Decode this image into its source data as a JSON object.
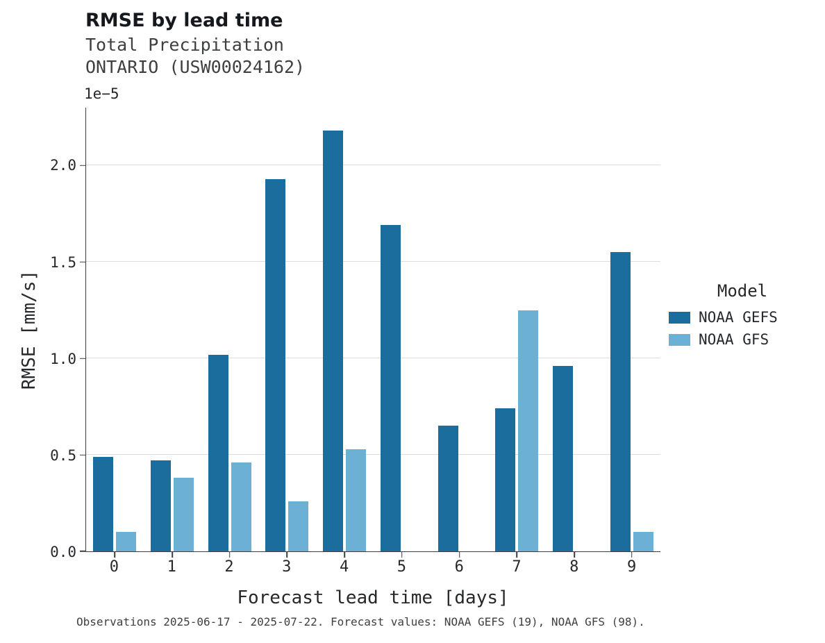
{
  "header": {
    "title": "RMSE by lead time",
    "subtitle1": "Total Precipitation",
    "subtitle2": "ONTARIO (USW00024162)"
  },
  "footer": {
    "caption": "Observations 2025-06-17 - 2025-07-22. Forecast values: NOAA GEFS (19), NOAA GFS (98)."
  },
  "chart_data": {
    "type": "bar",
    "title": "RMSE by lead time",
    "xlabel": "Forecast lead time [days]",
    "ylabel": "RMSE [mm/s]",
    "y_offset_label": "1e−5",
    "categories": [
      0,
      1,
      2,
      3,
      4,
      5,
      6,
      7,
      8,
      9
    ],
    "series": [
      {
        "name": "NOAA GEFS",
        "color": "#1b6d9d",
        "values": [
          0.49,
          0.47,
          1.02,
          1.93,
          2.18,
          1.69,
          0.65,
          0.74,
          0.96,
          1.55
        ]
      },
      {
        "name": "NOAA GFS",
        "color": "#6cb0d6",
        "values": [
          0.1,
          0.38,
          0.46,
          0.26,
          0.53,
          null,
          null,
          1.25,
          null,
          0.1
        ]
      }
    ],
    "ylim": [
      0,
      2.3
    ],
    "yticks": [
      0.0,
      0.5,
      1.0,
      1.5,
      2.0
    ],
    "legend_title": "Model",
    "legend_position": "right",
    "grid": true,
    "grid_color": "#dadcde",
    "background": "#ffffff"
  }
}
